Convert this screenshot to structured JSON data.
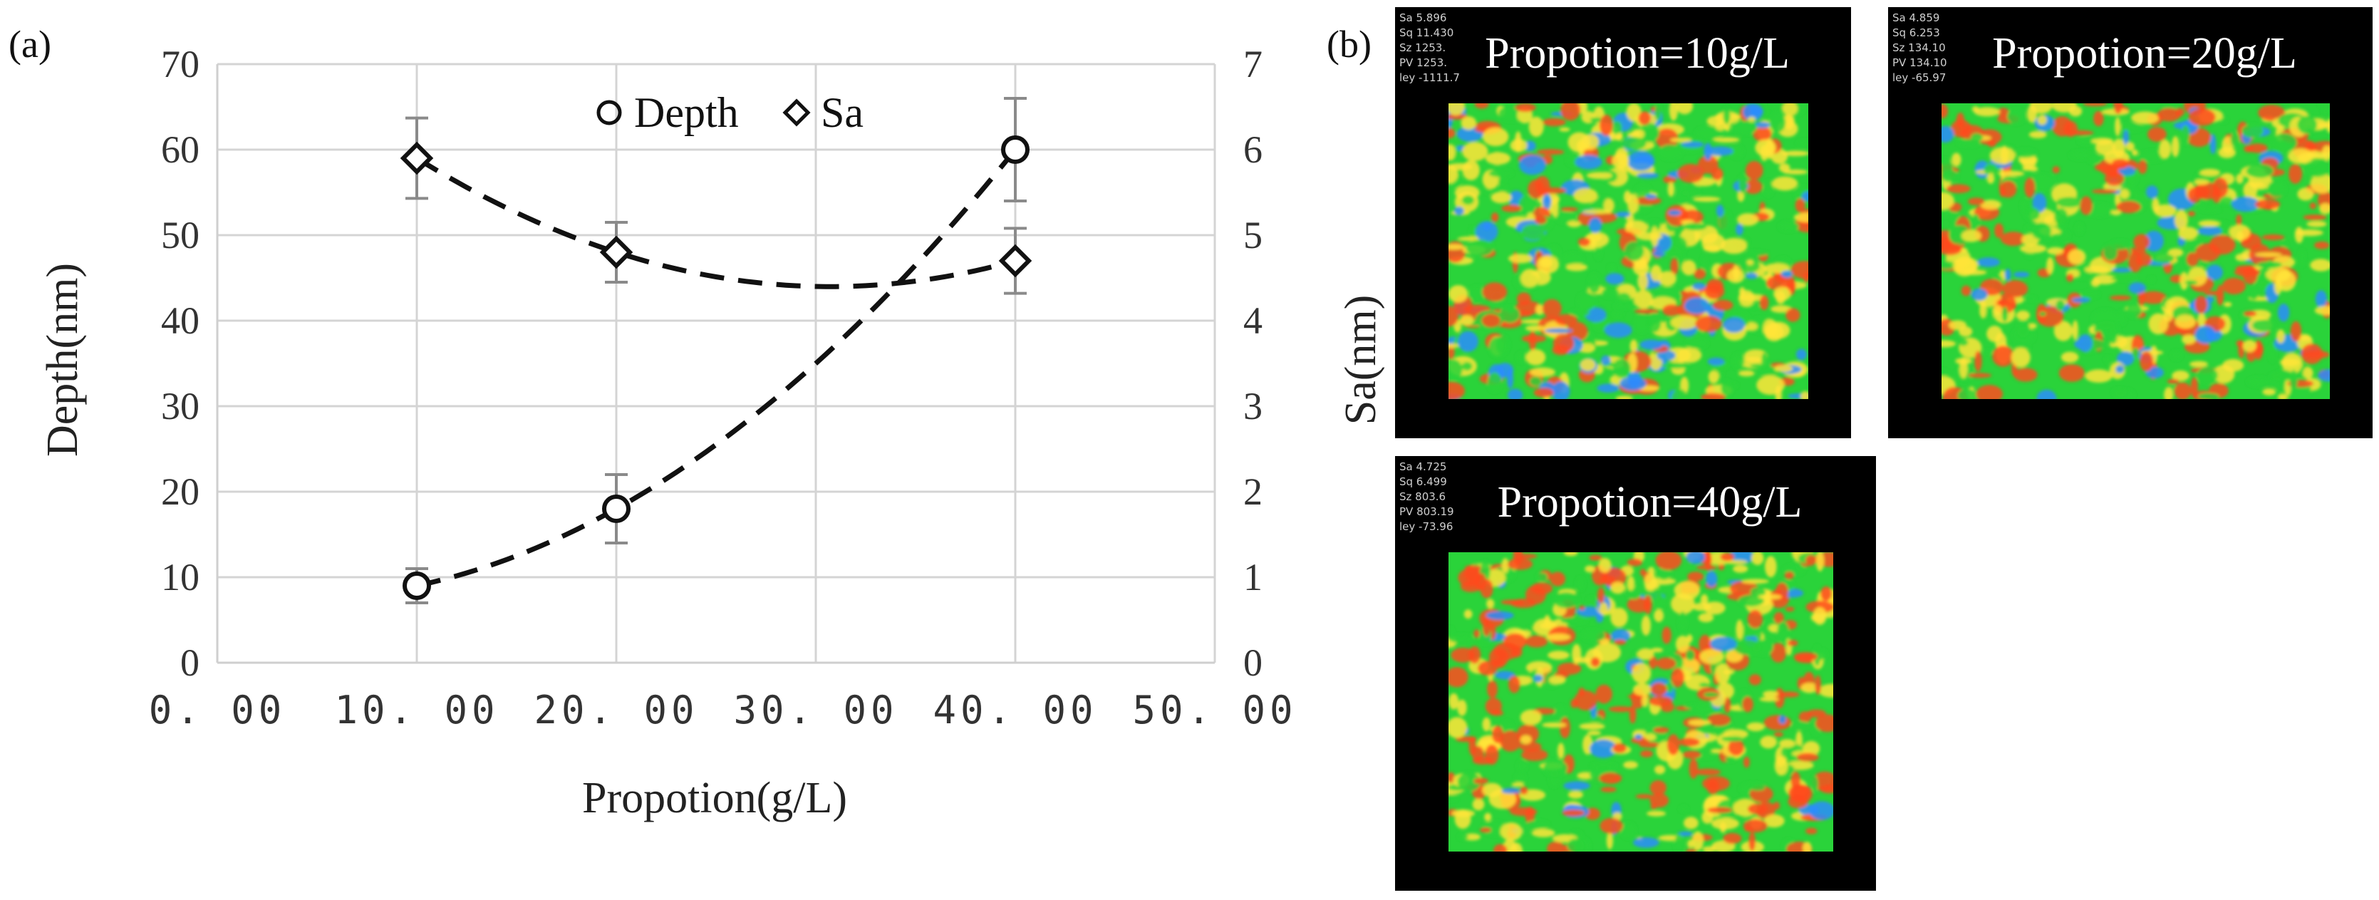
{
  "panel_a_label": "(a)",
  "panel_b_label": "(b)",
  "legend": {
    "depth": "Depth",
    "sa": "Sa"
  },
  "chart_data": {
    "type": "scatter",
    "xlabel": "Propotion(g/L)",
    "ylabel": "Depth(nm)",
    "y2label": "Sa(nm)",
    "xlim": [
      0,
      50
    ],
    "ylim": [
      0,
      70
    ],
    "y2lim": [
      0,
      7
    ],
    "grid": true,
    "legend_position": "top-center",
    "x_tick_labels": [
      "0. 00",
      "10. 00",
      "20. 00",
      "30. 00",
      "40. 00",
      "50. 00"
    ],
    "y_tick_labels": [
      "0",
      "10",
      "20",
      "30",
      "40",
      "50",
      "60",
      "70"
    ],
    "y2_tick_labels": [
      "0",
      "1",
      "2",
      "3",
      "4",
      "5",
      "6",
      "7"
    ],
    "series": [
      {
        "name": "Depth",
        "axis": "left",
        "marker": "circle",
        "x": [
          10,
          20,
          40
        ],
        "values": [
          9,
          18,
          60
        ],
        "error": [
          2,
          4,
          6
        ],
        "trend": "dashed"
      },
      {
        "name": "Sa",
        "axis": "right",
        "marker": "diamond",
        "x": [
          10,
          20,
          40
        ],
        "values": [
          5.9,
          4.8,
          4.7
        ],
        "error": [
          0.47,
          0.35,
          0.38
        ],
        "trend": "dashed"
      }
    ]
  },
  "maps": [
    {
      "title": "Propotion=10g/L",
      "stats": [
        "Sa 5.896",
        "Sq 11.430",
        "Sz 1253.",
        "PV 1253.",
        "ley -1111.7"
      ],
      "colors": [
        "#2a8cff",
        "#2ad33a",
        "#ffe53a",
        "#ff4a1c"
      ],
      "seed": 11
    },
    {
      "title": "Propotion=20g/L",
      "stats": [
        "Sa 4.859",
        "Sq 6.253",
        "Sz 134.10",
        "PV 134.10",
        "ley -65.97"
      ],
      "colors": [
        "#2a8cff",
        "#2ad33a",
        "#ffe53a",
        "#ff4a1c"
      ],
      "seed": 23
    },
    {
      "title": "Propotion=40g/L",
      "stats": [
        "Sa 4.725",
        "Sq 6.499",
        "Sz 803.6",
        "PV 803.19",
        "ley -73.96"
      ],
      "colors": [
        "#2a8cff",
        "#2ad33a",
        "#ffe53a",
        "#ff4a1c"
      ],
      "seed": 37
    }
  ]
}
